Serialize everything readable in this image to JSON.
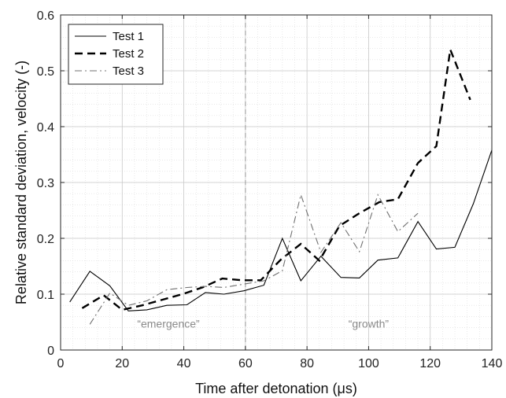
{
  "chart_data": {
    "type": "line",
    "xlabel": "Time after detonation (μs)",
    "ylabel": "Relative standard deviation, velocity (-)",
    "xlim": [
      0,
      140
    ],
    "ylim": [
      0,
      0.6
    ],
    "xticks": [
      0,
      20,
      40,
      60,
      80,
      100,
      120,
      140
    ],
    "yticks": [
      0,
      0.1,
      0.2,
      0.3,
      0.4,
      0.5,
      0.6
    ],
    "xtick_labels": [
      "0",
      "20",
      "40",
      "60",
      "80",
      "100",
      "120",
      "140"
    ],
    "ytick_labels": [
      "0",
      "0.1",
      "0.2",
      "0.3",
      "0.4",
      "0.5",
      "0.6"
    ],
    "grid": true,
    "minor_grid": true,
    "legend_position": "top-left",
    "vline": {
      "x": 60,
      "color": "#a0a0a0",
      "style": "dashed"
    },
    "annotations": [
      {
        "text": "“emergence”",
        "x": 35,
        "y": 0.04
      },
      {
        "text": "“growth”",
        "x": 100,
        "y": 0.04
      }
    ],
    "series": [
      {
        "name": "Test 1",
        "color": "#000000",
        "style": "solid",
        "x": [
          3,
          9.5,
          16,
          22,
          28,
          34.5,
          41,
          47,
          53,
          59.5,
          66,
          72,
          78,
          84.5,
          91,
          97,
          103,
          109.5,
          116,
          122,
          128,
          134,
          140
        ],
        "y": [
          0.086,
          0.141,
          0.115,
          0.07,
          0.072,
          0.08,
          0.081,
          0.103,
          0.1,
          0.106,
          0.116,
          0.2,
          0.124,
          0.168,
          0.13,
          0.129,
          0.161,
          0.165,
          0.23,
          0.181,
          0.184,
          0.262,
          0.358
        ]
      },
      {
        "name": "Test 2",
        "color": "#000000",
        "style": "dashed",
        "x": [
          7,
          14,
          20,
          26.5,
          33,
          39.5,
          46,
          52.5,
          59,
          65,
          71.5,
          78,
          84,
          90.5,
          97,
          103.5,
          109.5,
          116,
          122,
          126.5,
          133
        ],
        "y": [
          0.075,
          0.098,
          0.072,
          0.08,
          0.09,
          0.1,
          0.112,
          0.128,
          0.125,
          0.125,
          0.162,
          0.19,
          0.16,
          0.222,
          0.245,
          0.265,
          0.27,
          0.335,
          0.365,
          0.538,
          0.448
        ]
      },
      {
        "name": "Test 3",
        "color": "#707070",
        "style": "dashdot",
        "x": [
          9.5,
          16,
          22,
          28,
          34.5,
          41,
          47,
          53,
          59.5,
          66,
          72,
          78,
          84.5,
          91,
          97,
          103,
          109.5,
          116
        ],
        "y": [
          0.046,
          0.102,
          0.08,
          0.088,
          0.108,
          0.112,
          0.114,
          0.112,
          0.118,
          0.124,
          0.142,
          0.278,
          0.175,
          0.228,
          0.176,
          0.278,
          0.212,
          0.245
        ]
      }
    ]
  }
}
